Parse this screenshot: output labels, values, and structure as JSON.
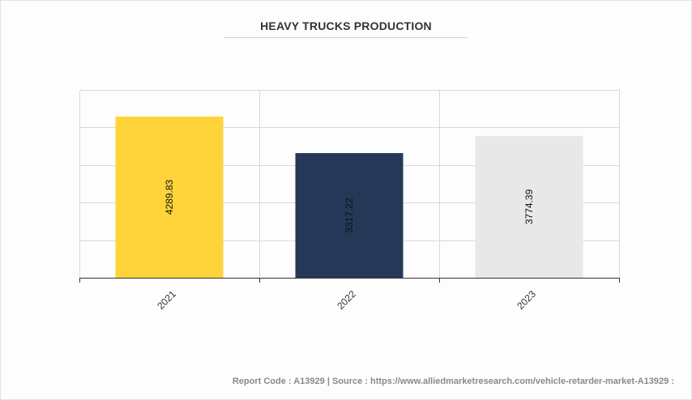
{
  "chart_data": {
    "type": "bar",
    "title": "HEAVY TRUCKS PRODUCTION",
    "categories": [
      "2021",
      "2022",
      "2023"
    ],
    "values": [
      4289.83,
      3317.22,
      3774.39
    ],
    "value_labels": [
      "4289.83",
      "3317.22",
      "3774.39"
    ],
    "colors": [
      "#FFD43B",
      "#253858",
      "#E8E8E8"
    ],
    "ylim": [
      0,
      5000
    ],
    "grid": true,
    "legend": "none"
  },
  "footer": {
    "text": "Report Code : A13929  |  Source : https://www.alliedmarketresearch.com/vehicle-retarder-market-A13929 :"
  }
}
